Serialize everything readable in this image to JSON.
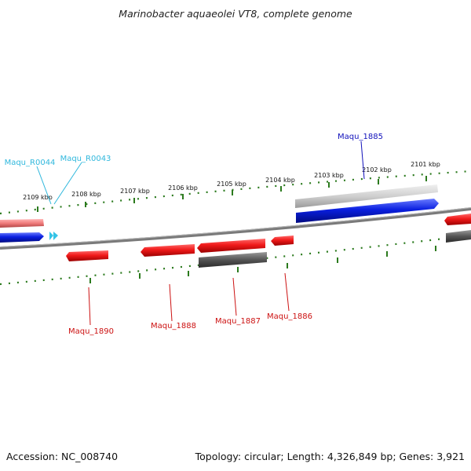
{
  "title": "Marinobacter aquaeolei VT8, complete genome",
  "footer": {
    "accession": "Accession: NC_008740",
    "summary": "Topology: circular; Length: 4,326,849 bp; Genes: 3,921"
  },
  "scale": {
    "ticks": [
      "2109 kbp",
      "2108 kbp",
      "2107 kbp",
      "2106 kbp",
      "2105 kbp",
      "2104 kbp",
      "2103 kbp",
      "2102 kbp",
      "2101 kbp"
    ]
  },
  "genes": {
    "maqu_r0044": "Maqu_R0044",
    "maqu_r0043": "Maqu_R0043",
    "maqu_1885": "Maqu_1885",
    "maqu_1890": "Maqu_1890",
    "maqu_1888": "Maqu_1888",
    "maqu_1887": "Maqu_1887",
    "maqu_1886": "Maqu_1886"
  },
  "colors": {
    "reverse_strand": "#e8121b",
    "forward_strand": "#0a1fe0",
    "rna": "#35c3e6",
    "selected_gray": "#cfcfcf",
    "dark_gray": "#4f4f4f",
    "ruler_green": "#2b7a1d",
    "backbone": "#7a7a7a",
    "label_red": "#cc1111",
    "label_blue": "#1111bb",
    "label_cyan": "#30b8dd"
  }
}
